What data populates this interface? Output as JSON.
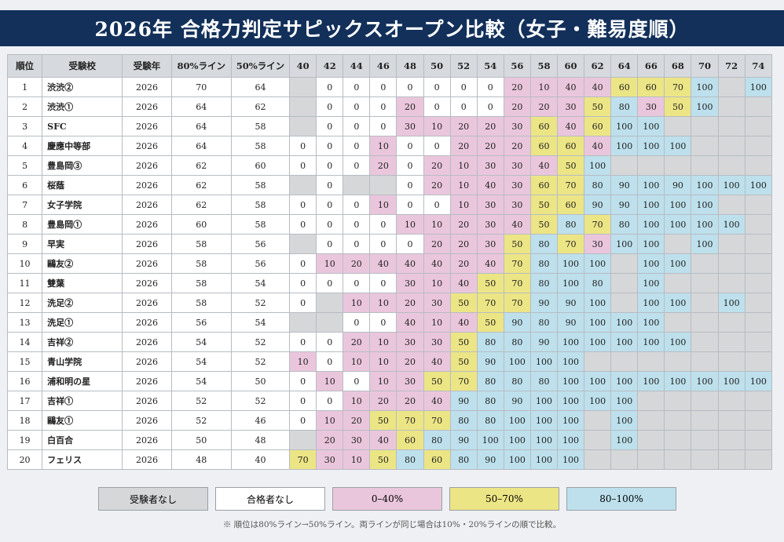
{
  "title": "2026年 合格力判定サピックスオープン比較（女子・難易度順）",
  "colors": {
    "no_exam": "#d5d7d9",
    "no_pass": "#ffffff",
    "low": "#eac6dc",
    "mid": "#ece585",
    "high": "#bde0ec",
    "header_bg": "#12305a"
  },
  "chart_data": {
    "type": "table",
    "columns": [
      "順位",
      "受験校",
      "受験年",
      "80%ライン",
      "50%ライン",
      "40",
      "42",
      "44",
      "46",
      "48",
      "50",
      "52",
      "54",
      "56",
      "58",
      "60",
      "62",
      "64",
      "66",
      "68",
      "70",
      "72",
      "74"
    ],
    "score_columns": [
      "40",
      "42",
      "44",
      "46",
      "48",
      "50",
      "52",
      "54",
      "56",
      "58",
      "60",
      "62",
      "64",
      "66",
      "68",
      "70",
      "72",
      "74"
    ],
    "rows": [
      {
        "rank": "1",
        "school": "渋渋②",
        "year": "2026",
        "line80": "70",
        "line50": "64",
        "scores": [
          null,
          0,
          0,
          0,
          0,
          0,
          0,
          0,
          20,
          10,
          40,
          40,
          60,
          60,
          70,
          100,
          null,
          100
        ]
      },
      {
        "rank": "2",
        "school": "渋渋①",
        "year": "2026",
        "line80": "64",
        "line50": "62",
        "scores": [
          null,
          0,
          0,
          0,
          20,
          0,
          0,
          0,
          20,
          20,
          30,
          50,
          80,
          30,
          50,
          100,
          null,
          null
        ]
      },
      {
        "rank": "3",
        "school": "SFC",
        "year": "2026",
        "line80": "64",
        "line50": "58",
        "scores": [
          null,
          0,
          0,
          0,
          30,
          10,
          20,
          20,
          30,
          60,
          40,
          60,
          100,
          100,
          null,
          null,
          null,
          null
        ]
      },
      {
        "rank": "4",
        "school": "慶應中等部",
        "year": "2026",
        "line80": "64",
        "line50": "58",
        "scores": [
          0,
          0,
          0,
          10,
          0,
          0,
          20,
          20,
          20,
          60,
          60,
          40,
          100,
          100,
          100,
          null,
          null,
          null
        ]
      },
      {
        "rank": "5",
        "school": "豊島岡③",
        "year": "2026",
        "line80": "62",
        "line50": "60",
        "scores": [
          0,
          0,
          0,
          20,
          0,
          20,
          10,
          30,
          30,
          40,
          50,
          100,
          null,
          null,
          null,
          null,
          null,
          null
        ]
      },
      {
        "rank": "6",
        "school": "桜蔭",
        "year": "2026",
        "line80": "62",
        "line50": "58",
        "scores": [
          null,
          0,
          null,
          null,
          0,
          20,
          10,
          40,
          30,
          60,
          70,
          80,
          90,
          100,
          90,
          100,
          100,
          100
        ]
      },
      {
        "rank": "7",
        "school": "女子学院",
        "year": "2026",
        "line80": "62",
        "line50": "58",
        "scores": [
          0,
          0,
          0,
          10,
          0,
          0,
          10,
          30,
          30,
          50,
          60,
          90,
          90,
          100,
          100,
          100,
          null,
          null
        ]
      },
      {
        "rank": "8",
        "school": "豊島岡①",
        "year": "2026",
        "line80": "60",
        "line50": "58",
        "scores": [
          0,
          0,
          0,
          0,
          10,
          10,
          20,
          30,
          40,
          50,
          80,
          70,
          80,
          100,
          100,
          100,
          100,
          null
        ]
      },
      {
        "rank": "9",
        "school": "早実",
        "year": "2026",
        "line80": "58",
        "line50": "56",
        "scores": [
          null,
          0,
          0,
          0,
          0,
          20,
          20,
          30,
          50,
          80,
          70,
          30,
          100,
          100,
          null,
          100,
          null,
          null
        ]
      },
      {
        "rank": "10",
        "school": "鷗友②",
        "year": "2026",
        "line80": "58",
        "line50": "56",
        "scores": [
          0,
          10,
          20,
          40,
          40,
          40,
          20,
          40,
          70,
          80,
          100,
          100,
          null,
          100,
          100,
          null,
          null,
          null
        ]
      },
      {
        "rank": "11",
        "school": "雙葉",
        "year": "2026",
        "line80": "58",
        "line50": "54",
        "scores": [
          0,
          0,
          0,
          0,
          30,
          10,
          40,
          50,
          70,
          80,
          100,
          80,
          null,
          100,
          null,
          null,
          null,
          null
        ]
      },
      {
        "rank": "12",
        "school": "洗足②",
        "year": "2026",
        "line80": "58",
        "line50": "52",
        "scores": [
          0,
          null,
          10,
          10,
          20,
          30,
          50,
          70,
          70,
          90,
          90,
          100,
          null,
          100,
          100,
          null,
          100,
          null
        ]
      },
      {
        "rank": "13",
        "school": "洗足①",
        "year": "2026",
        "line80": "56",
        "line50": "54",
        "scores": [
          null,
          null,
          0,
          0,
          40,
          10,
          40,
          50,
          90,
          80,
          90,
          100,
          100,
          100,
          null,
          null,
          null,
          null
        ]
      },
      {
        "rank": "14",
        "school": "吉祥②",
        "year": "2026",
        "line80": "54",
        "line50": "52",
        "scores": [
          0,
          0,
          20,
          10,
          30,
          30,
          50,
          80,
          80,
          90,
          100,
          100,
          100,
          100,
          100,
          null,
          null,
          null
        ]
      },
      {
        "rank": "15",
        "school": "青山学院",
        "year": "2026",
        "line80": "54",
        "line50": "52",
        "scores": [
          10,
          0,
          10,
          10,
          20,
          40,
          50,
          90,
          100,
          100,
          100,
          null,
          null,
          null,
          null,
          null,
          null,
          null
        ]
      },
      {
        "rank": "16",
        "school": "浦和明の星",
        "year": "2026",
        "line80": "54",
        "line50": "50",
        "scores": [
          0,
          10,
          0,
          10,
          30,
          50,
          70,
          80,
          80,
          80,
          100,
          100,
          100,
          100,
          100,
          100,
          100,
          100
        ]
      },
      {
        "rank": "17",
        "school": "吉祥①",
        "year": "2026",
        "line80": "52",
        "line50": "52",
        "scores": [
          0,
          0,
          10,
          20,
          20,
          40,
          90,
          80,
          90,
          100,
          100,
          100,
          100,
          null,
          null,
          null,
          null,
          null
        ]
      },
      {
        "rank": "18",
        "school": "鷗友①",
        "year": "2026",
        "line80": "52",
        "line50": "46",
        "scores": [
          0,
          10,
          20,
          50,
          70,
          70,
          80,
          80,
          100,
          100,
          100,
          null,
          100,
          null,
          null,
          null,
          null,
          null
        ]
      },
      {
        "rank": "19",
        "school": "白百合",
        "year": "2026",
        "line80": "50",
        "line50": "48",
        "scores": [
          null,
          20,
          30,
          40,
          60,
          80,
          90,
          100,
          100,
          100,
          100,
          null,
          100,
          null,
          null,
          null,
          null,
          null
        ]
      },
      {
        "rank": "20",
        "school": "フェリス",
        "year": "2026",
        "line80": "48",
        "line50": "40",
        "scores": [
          70,
          30,
          10,
          50,
          80,
          60,
          80,
          90,
          100,
          100,
          100,
          null,
          null,
          null,
          null,
          null,
          null,
          null
        ]
      }
    ],
    "legend": [
      {
        "label": "受験者なし",
        "key": "no_exam"
      },
      {
        "label": "合格者なし",
        "key": "no_pass"
      },
      {
        "label": "0–40%",
        "key": "low"
      },
      {
        "label": "50–70%",
        "key": "mid"
      },
      {
        "label": "80–100%",
        "key": "high"
      }
    ],
    "note": "※ 順位は80%ライン→50%ライン。両ラインが同じ場合は10%・20%ラインの順で比較。"
  }
}
